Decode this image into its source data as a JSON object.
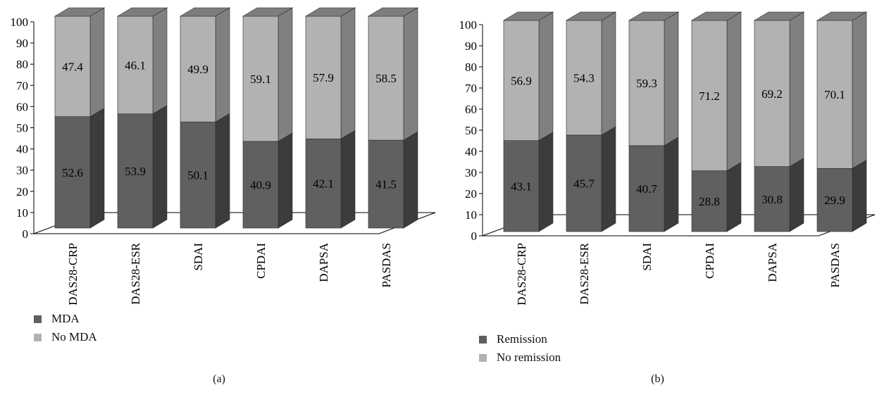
{
  "colors": {
    "lower_front": "#606060",
    "lower_side": "#3c3c3c",
    "upper_front": "#b2b2b2",
    "upper_side": "#808080",
    "top": "#7d7d7d"
  },
  "chart_data": [
    {
      "type": "bar",
      "stacked": true,
      "panel_label": "(a)",
      "categories": [
        "DAS28-CRP",
        "DAS28-ESR",
        "SDAI",
        "CPDAI",
        "DAPSA",
        "PASDAS"
      ],
      "ylim": [
        0,
        100
      ],
      "yticks": [
        0,
        10,
        20,
        30,
        40,
        50,
        60,
        70,
        80,
        90,
        100
      ],
      "legend": "bottom-left",
      "series": [
        {
          "name": "MDA",
          "values": [
            52.6,
            53.9,
            50.1,
            40.9,
            42.1,
            41.5
          ],
          "labels": [
            "52.6",
            "53.9",
            "50.1",
            "40.9",
            "42.1",
            "41.5"
          ]
        },
        {
          "name": "No MDA",
          "values": [
            47.4,
            46.1,
            49.9,
            59.1,
            57.9,
            58.5
          ],
          "labels": [
            "47.4",
            "46.1",
            "49.9",
            "59.1",
            "57.9",
            "58.5"
          ]
        }
      ]
    },
    {
      "type": "bar",
      "stacked": true,
      "panel_label": "(b)",
      "categories": [
        "DAS28-CRP",
        "DAS28-ESR",
        "SDAI",
        "CPDAI",
        "DAPSA",
        "PASDAS"
      ],
      "ylim": [
        0,
        100
      ],
      "yticks": [
        0,
        10,
        20,
        30,
        40,
        50,
        60,
        70,
        80,
        90,
        100
      ],
      "legend": "bottom-left",
      "series": [
        {
          "name": "Remission",
          "values": [
            43.1,
            45.7,
            40.7,
            28.8,
            30.8,
            29.9
          ],
          "labels": [
            "43.1",
            "45.7",
            "40.7",
            "28.8",
            "30.8",
            "29.9"
          ]
        },
        {
          "name": "No remission",
          "values": [
            56.9,
            54.3,
            59.3,
            71.2,
            69.2,
            70.1
          ],
          "labels": [
            "56.9",
            "54.3",
            "59.3",
            "71.2",
            "69.2",
            "70.1"
          ]
        }
      ]
    }
  ]
}
